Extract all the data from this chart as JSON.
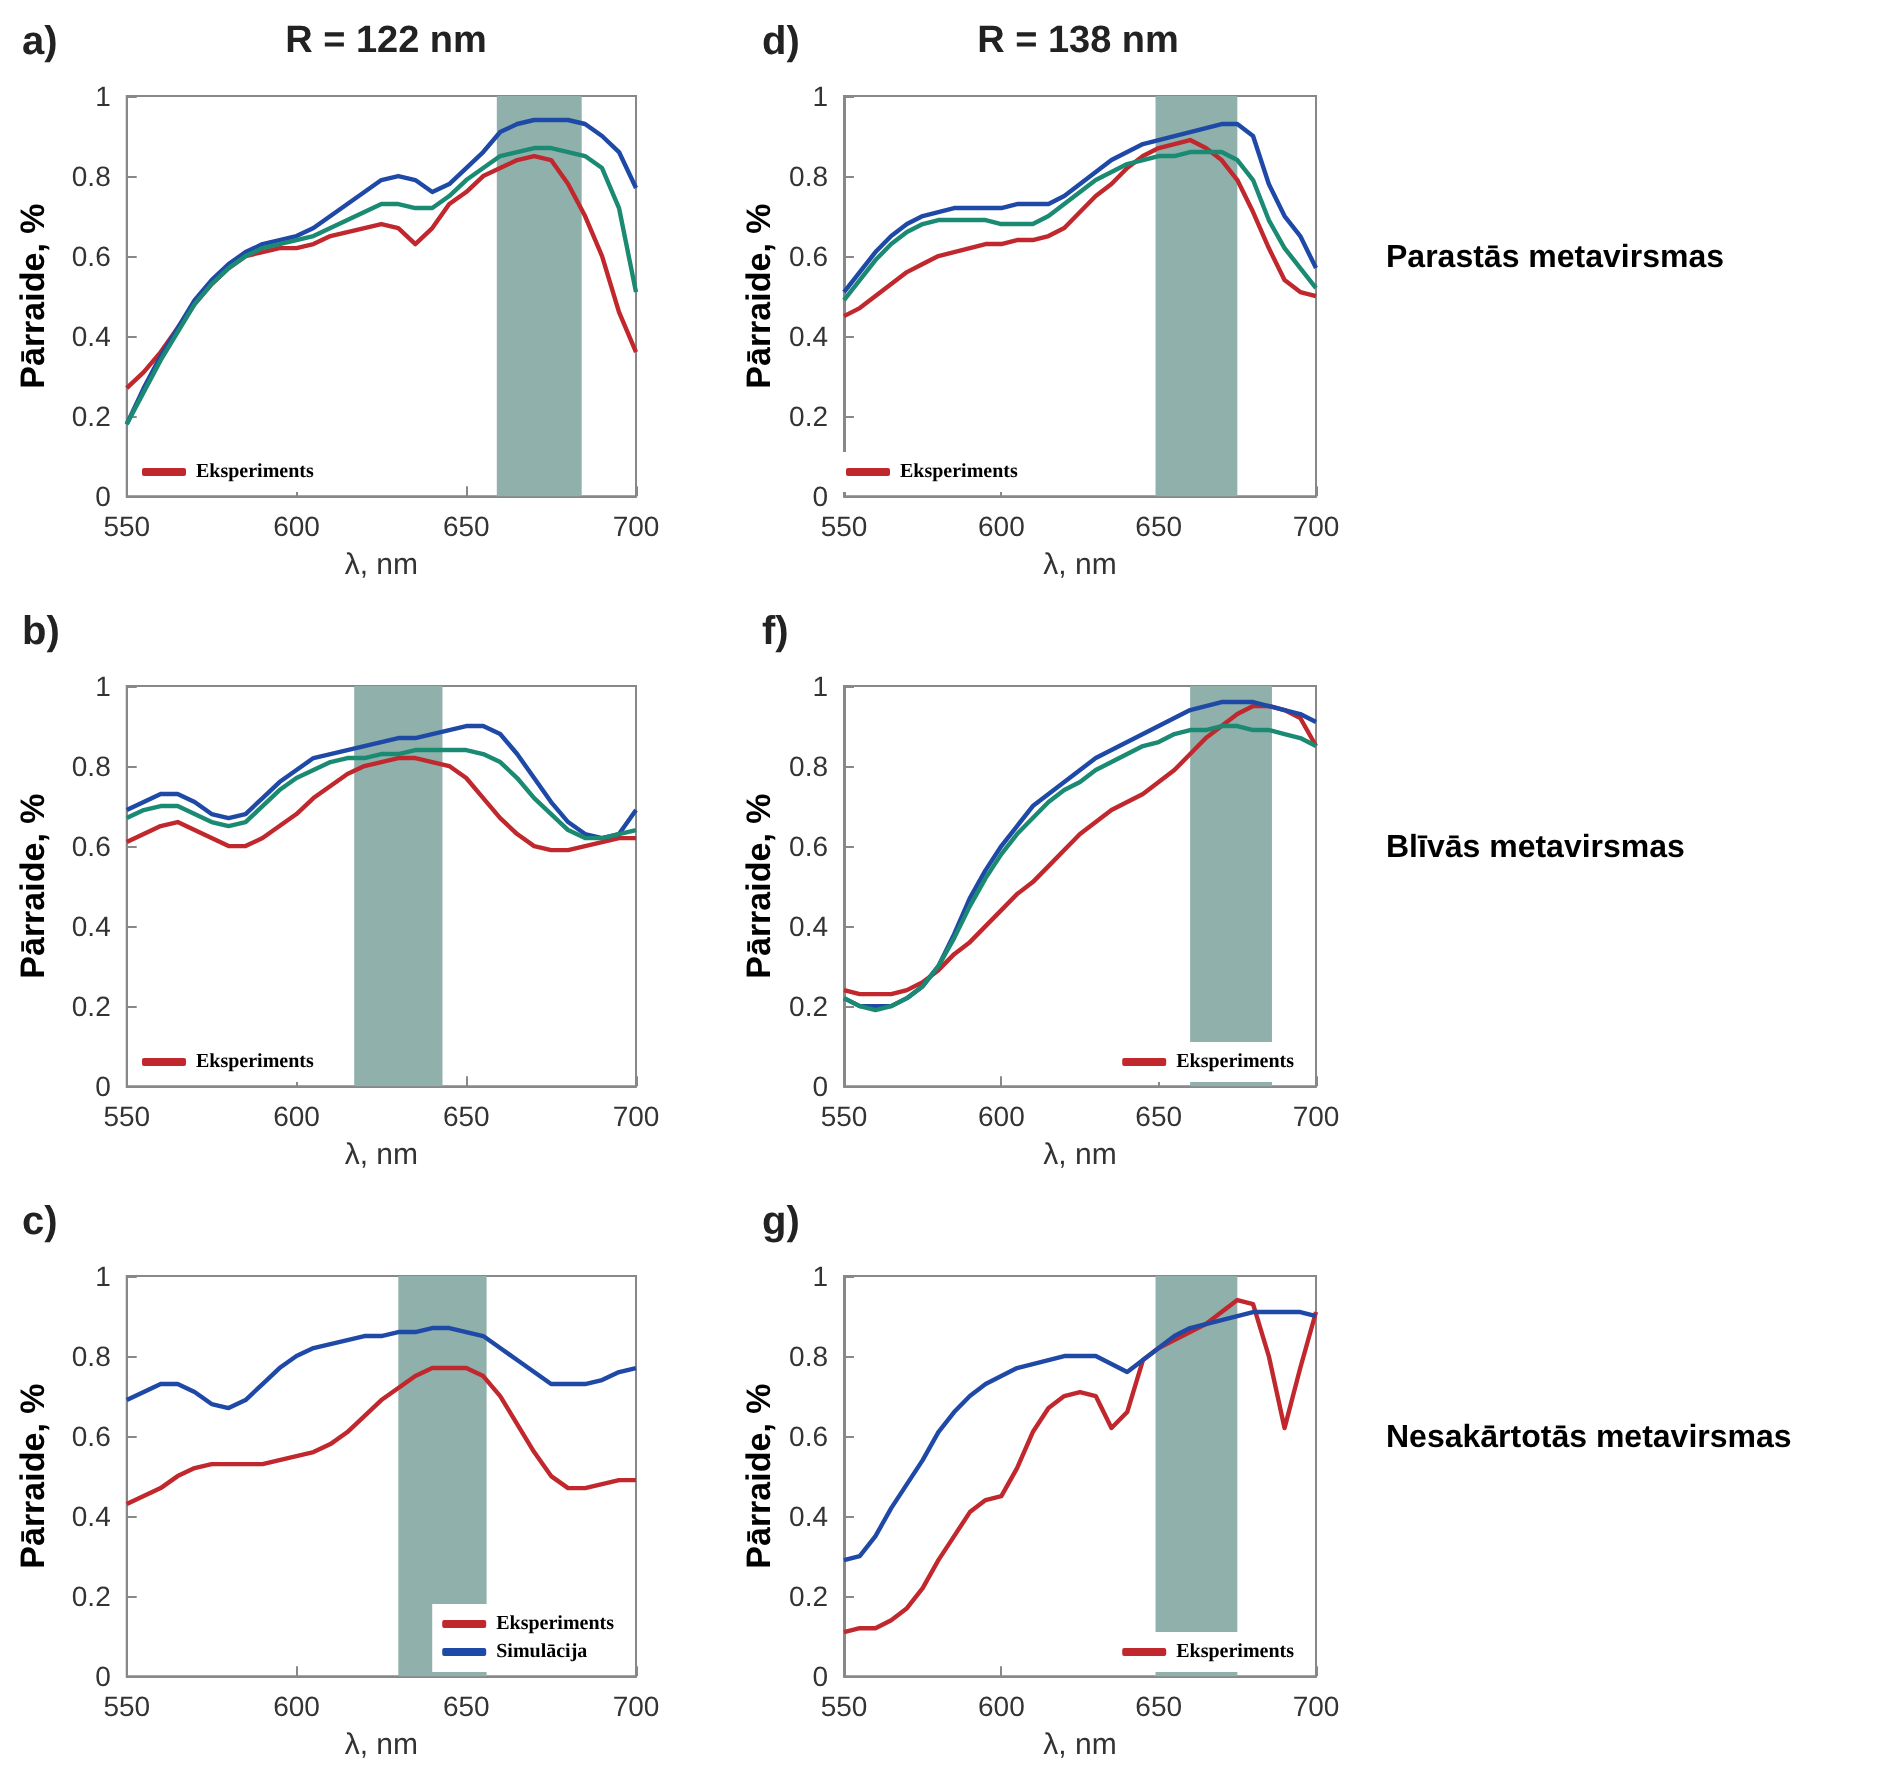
{
  "chart_data": [
    {
      "type": "line",
      "title": "a)",
      "subtitle": "R = 122 nm",
      "xlabel": "λ, nm",
      "ylabel": "Pārraide, %",
      "xlim": [
        550,
        700
      ],
      "ylim": [
        0,
        1
      ],
      "xticks": [
        550,
        600,
        650,
        700
      ],
      "yticks": [
        0,
        0.2,
        0.4,
        0.6,
        0.8,
        1
      ],
      "legend": "bottom left",
      "marker": "none",
      "grid": false,
      "x": [
        550,
        555,
        560,
        565,
        570,
        575,
        580,
        585,
        590,
        595,
        600,
        605,
        610,
        615,
        620,
        625,
        630,
        635,
        640,
        645,
        650,
        655,
        660,
        665,
        670,
        675,
        680,
        685,
        690,
        695,
        700
      ],
      "bands": [
        {
          "axis": "x",
          "from": 659,
          "to": 684,
          "color": "#8fb0ab"
        }
      ],
      "series": [
        {
          "name": "Eksperiments",
          "color": "#c0282d",
          "values": [
            0.27,
            0.31,
            0.36,
            0.42,
            0.48,
            0.53,
            0.57,
            0.6,
            0.61,
            0.62,
            0.62,
            0.63,
            0.65,
            0.66,
            0.67,
            0.68,
            0.67,
            0.63,
            0.67,
            0.73,
            0.76,
            0.8,
            0.82,
            0.84,
            0.85,
            0.84,
            0.78,
            0.7,
            0.6,
            0.46,
            0.36
          ]
        },
        {
          "color": "#1f49a6",
          "values": [
            0.18,
            0.27,
            0.35,
            0.42,
            0.49,
            0.54,
            0.58,
            0.61,
            0.63,
            0.64,
            0.65,
            0.67,
            0.7,
            0.73,
            0.76,
            0.79,
            0.8,
            0.79,
            0.76,
            0.78,
            0.82,
            0.86,
            0.91,
            0.93,
            0.94,
            0.94,
            0.94,
            0.93,
            0.9,
            0.86,
            0.77
          ]
        },
        {
          "color": "#1a8a73",
          "values": [
            0.18,
            0.26,
            0.34,
            0.41,
            0.48,
            0.53,
            0.57,
            0.6,
            0.62,
            0.63,
            0.64,
            0.65,
            0.67,
            0.69,
            0.71,
            0.73,
            0.73,
            0.72,
            0.72,
            0.75,
            0.79,
            0.82,
            0.85,
            0.86,
            0.87,
            0.87,
            0.86,
            0.85,
            0.82,
            0.72,
            0.51
          ]
        }
      ]
    },
    {
      "type": "line",
      "title": "d)",
      "subtitle": "R = 138 nm",
      "xlabel": "λ, nm",
      "ylabel": "Pārraide, %",
      "xlim": [
        550,
        700
      ],
      "ylim": [
        0,
        1
      ],
      "xticks": [
        550,
        600,
        650,
        700
      ],
      "yticks": [
        0,
        0.2,
        0.4,
        0.6,
        0.8,
        1
      ],
      "legend": "bottom left",
      "marker": "none",
      "grid": false,
      "annotations": [
        "Parastās metavirsmas"
      ],
      "x": [
        550,
        555,
        560,
        565,
        570,
        575,
        580,
        585,
        590,
        595,
        600,
        605,
        610,
        615,
        620,
        625,
        630,
        635,
        640,
        645,
        650,
        655,
        660,
        665,
        670,
        675,
        680,
        685,
        690,
        695,
        700
      ],
      "bands": [
        {
          "axis": "x",
          "from": 649,
          "to": 675,
          "color": "#8fb0ab"
        }
      ],
      "series": [
        {
          "name": "Eksperiments",
          "color": "#c0282d",
          "values": [
            0.45,
            0.47,
            0.5,
            0.53,
            0.56,
            0.58,
            0.6,
            0.61,
            0.62,
            0.63,
            0.63,
            0.64,
            0.64,
            0.65,
            0.67,
            0.71,
            0.75,
            0.78,
            0.82,
            0.85,
            0.87,
            0.88,
            0.89,
            0.87,
            0.84,
            0.79,
            0.71,
            0.62,
            0.54,
            0.51,
            0.5
          ]
        },
        {
          "color": "#1f49a6",
          "values": [
            0.51,
            0.56,
            0.61,
            0.65,
            0.68,
            0.7,
            0.71,
            0.72,
            0.72,
            0.72,
            0.72,
            0.73,
            0.73,
            0.73,
            0.75,
            0.78,
            0.81,
            0.84,
            0.86,
            0.88,
            0.89,
            0.9,
            0.91,
            0.92,
            0.93,
            0.93,
            0.9,
            0.78,
            0.7,
            0.65,
            0.57
          ]
        },
        {
          "color": "#1a8a73",
          "values": [
            0.49,
            0.54,
            0.59,
            0.63,
            0.66,
            0.68,
            0.69,
            0.69,
            0.69,
            0.69,
            0.68,
            0.68,
            0.68,
            0.7,
            0.73,
            0.76,
            0.79,
            0.81,
            0.83,
            0.84,
            0.85,
            0.85,
            0.86,
            0.86,
            0.86,
            0.84,
            0.79,
            0.69,
            0.62,
            0.57,
            0.52
          ]
        }
      ]
    },
    {
      "type": "line",
      "title": "b)",
      "xlabel": "λ, nm",
      "ylabel": "Pārraide, %",
      "xlim": [
        550,
        700
      ],
      "ylim": [
        0,
        1
      ],
      "xticks": [
        550,
        600,
        650,
        700
      ],
      "yticks": [
        0,
        0.2,
        0.4,
        0.6,
        0.8,
        1
      ],
      "legend": "bottom left",
      "marker": "none",
      "grid": false,
      "x": [
        550,
        555,
        560,
        565,
        570,
        575,
        580,
        585,
        590,
        595,
        600,
        605,
        610,
        615,
        620,
        625,
        630,
        635,
        640,
        645,
        650,
        655,
        660,
        665,
        670,
        675,
        680,
        685,
        690,
        695,
        700
      ],
      "bands": [
        {
          "axis": "x",
          "from": 617,
          "to": 643,
          "color": "#8fb0ab"
        }
      ],
      "series": [
        {
          "name": "Eksperiments",
          "color": "#c0282d",
          "values": [
            0.61,
            0.63,
            0.65,
            0.66,
            0.64,
            0.62,
            0.6,
            0.6,
            0.62,
            0.65,
            0.68,
            0.72,
            0.75,
            0.78,
            0.8,
            0.81,
            0.82,
            0.82,
            0.81,
            0.8,
            0.77,
            0.72,
            0.67,
            0.63,
            0.6,
            0.59,
            0.59,
            0.6,
            0.61,
            0.62,
            0.62
          ]
        },
        {
          "color": "#1f49a6",
          "values": [
            0.69,
            0.71,
            0.73,
            0.73,
            0.71,
            0.68,
            0.67,
            0.68,
            0.72,
            0.76,
            0.79,
            0.82,
            0.83,
            0.84,
            0.85,
            0.86,
            0.87,
            0.87,
            0.88,
            0.89,
            0.9,
            0.9,
            0.88,
            0.83,
            0.77,
            0.71,
            0.66,
            0.63,
            0.62,
            0.63,
            0.69
          ]
        },
        {
          "color": "#1a8a73",
          "values": [
            0.67,
            0.69,
            0.7,
            0.7,
            0.68,
            0.66,
            0.65,
            0.66,
            0.7,
            0.74,
            0.77,
            0.79,
            0.81,
            0.82,
            0.82,
            0.83,
            0.83,
            0.84,
            0.84,
            0.84,
            0.84,
            0.83,
            0.81,
            0.77,
            0.72,
            0.68,
            0.64,
            0.62,
            0.62,
            0.63,
            0.64
          ]
        }
      ]
    },
    {
      "type": "line",
      "title": "f)",
      "xlabel": "λ, nm",
      "ylabel": "Pārraide, %",
      "xlim": [
        550,
        700
      ],
      "ylim": [
        0,
        1
      ],
      "xticks": [
        550,
        600,
        650,
        700
      ],
      "yticks": [
        0,
        0.2,
        0.4,
        0.6,
        0.8,
        1
      ],
      "legend": "bottom right",
      "marker": "none",
      "grid": false,
      "annotations": [
        "Blīvās metavirsmas"
      ],
      "x": [
        550,
        555,
        560,
        565,
        570,
        575,
        580,
        585,
        590,
        595,
        600,
        605,
        610,
        615,
        620,
        625,
        630,
        635,
        640,
        645,
        650,
        655,
        660,
        665,
        670,
        675,
        680,
        685,
        690,
        695,
        700
      ],
      "bands": [
        {
          "axis": "x",
          "from": 660,
          "to": 686,
          "color": "#8fb0ab"
        }
      ],
      "series": [
        {
          "name": "Eksperiments",
          "color": "#c0282d",
          "values": [
            0.24,
            0.23,
            0.23,
            0.23,
            0.24,
            0.26,
            0.29,
            0.33,
            0.36,
            0.4,
            0.44,
            0.48,
            0.51,
            0.55,
            0.59,
            0.63,
            0.66,
            0.69,
            0.71,
            0.73,
            0.76,
            0.79,
            0.83,
            0.87,
            0.9,
            0.93,
            0.95,
            0.95,
            0.94,
            0.92,
            0.85
          ]
        },
        {
          "color": "#1f49a6",
          "values": [
            0.22,
            0.2,
            0.2,
            0.2,
            0.22,
            0.25,
            0.3,
            0.38,
            0.47,
            0.54,
            0.6,
            0.65,
            0.7,
            0.73,
            0.76,
            0.79,
            0.82,
            0.84,
            0.86,
            0.88,
            0.9,
            0.92,
            0.94,
            0.95,
            0.96,
            0.96,
            0.96,
            0.95,
            0.94,
            0.93,
            0.91
          ]
        },
        {
          "color": "#1a8a73",
          "values": [
            0.22,
            0.2,
            0.19,
            0.2,
            0.22,
            0.25,
            0.3,
            0.37,
            0.45,
            0.52,
            0.58,
            0.63,
            0.67,
            0.71,
            0.74,
            0.76,
            0.79,
            0.81,
            0.83,
            0.85,
            0.86,
            0.88,
            0.89,
            0.89,
            0.9,
            0.9,
            0.89,
            0.89,
            0.88,
            0.87,
            0.85
          ]
        }
      ]
    },
    {
      "type": "line",
      "title": "c)",
      "xlabel": "λ, nm",
      "ylabel": "Pārraide, %",
      "xlim": [
        550,
        700
      ],
      "ylim": [
        0,
        1
      ],
      "xticks": [
        550,
        600,
        650,
        700
      ],
      "yticks": [
        0,
        0.2,
        0.4,
        0.6,
        0.8,
        1
      ],
      "legend": "bottom right",
      "marker": "none",
      "grid": false,
      "x": [
        550,
        555,
        560,
        565,
        570,
        575,
        580,
        585,
        590,
        595,
        600,
        605,
        610,
        615,
        620,
        625,
        630,
        635,
        640,
        645,
        650,
        655,
        660,
        665,
        670,
        675,
        680,
        685,
        690,
        695,
        700
      ],
      "bands": [
        {
          "axis": "x",
          "from": 630,
          "to": 656,
          "color": "#8fb0ab"
        }
      ],
      "series": [
        {
          "name": "Eksperiments",
          "color": "#c0282d",
          "values": [
            0.43,
            0.45,
            0.47,
            0.5,
            0.52,
            0.53,
            0.53,
            0.53,
            0.53,
            0.54,
            0.55,
            0.56,
            0.58,
            0.61,
            0.65,
            0.69,
            0.72,
            0.75,
            0.77,
            0.77,
            0.77,
            0.75,
            0.7,
            0.63,
            0.56,
            0.5,
            0.47,
            0.47,
            0.48,
            0.49,
            0.49
          ]
        },
        {
          "name": "Simulācija",
          "color": "#1f49a6",
          "values": [
            0.69,
            0.71,
            0.73,
            0.73,
            0.71,
            0.68,
            0.67,
            0.69,
            0.73,
            0.77,
            0.8,
            0.82,
            0.83,
            0.84,
            0.85,
            0.85,
            0.86,
            0.86,
            0.87,
            0.87,
            0.86,
            0.85,
            0.82,
            0.79,
            0.76,
            0.73,
            0.73,
            0.73,
            0.74,
            0.76,
            0.77
          ]
        }
      ]
    },
    {
      "type": "line",
      "title": "g)",
      "xlabel": "λ, nm",
      "ylabel": "Pārraide, %",
      "xlim": [
        550,
        700
      ],
      "ylim": [
        0,
        1
      ],
      "xticks": [
        550,
        600,
        650,
        700
      ],
      "yticks": [
        0,
        0.2,
        0.4,
        0.6,
        0.8,
        1
      ],
      "legend": "bottom right",
      "marker": "none",
      "grid": false,
      "annotations": [
        "Nesakārtotās metavirsmas"
      ],
      "x": [
        550,
        555,
        560,
        565,
        570,
        575,
        580,
        585,
        590,
        595,
        600,
        605,
        610,
        615,
        620,
        625,
        630,
        635,
        640,
        645,
        650,
        655,
        660,
        665,
        670,
        675,
        680,
        685,
        690,
        695,
        700
      ],
      "bands": [
        {
          "axis": "x",
          "from": 649,
          "to": 675,
          "color": "#8fb0ab"
        }
      ],
      "series": [
        {
          "name": "Eksperiments",
          "color": "#c0282d",
          "values": [
            0.11,
            0.12,
            0.12,
            0.14,
            0.17,
            0.22,
            0.29,
            0.35,
            0.41,
            0.44,
            0.45,
            0.52,
            0.61,
            0.67,
            0.7,
            0.71,
            0.7,
            0.62,
            0.66,
            0.79,
            0.82,
            0.84,
            0.86,
            0.88,
            0.91,
            0.94,
            0.93,
            0.8,
            0.62,
            0.77,
            0.91
          ]
        },
        {
          "color": "#1f49a6",
          "values": [
            0.29,
            0.3,
            0.35,
            0.42,
            0.48,
            0.54,
            0.61,
            0.66,
            0.7,
            0.73,
            0.75,
            0.77,
            0.78,
            0.79,
            0.8,
            0.8,
            0.8,
            0.78,
            0.76,
            0.79,
            0.82,
            0.85,
            0.87,
            0.88,
            0.89,
            0.9,
            0.91,
            0.91,
            0.91,
            0.91,
            0.9
          ]
        }
      ]
    }
  ]
}
